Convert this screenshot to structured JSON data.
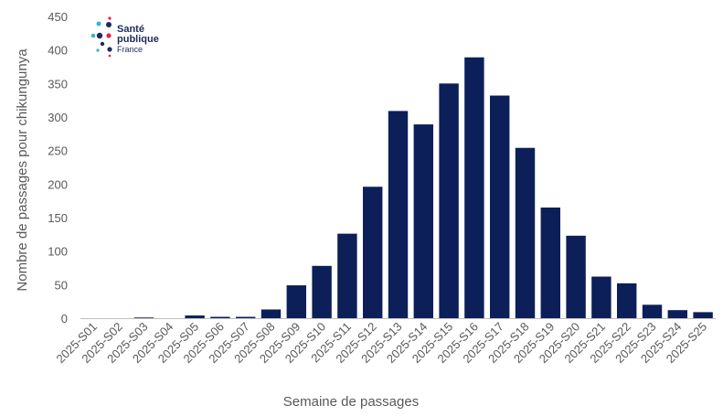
{
  "logo": {
    "line1": "Santé",
    "line2": "publique",
    "line3": "France",
    "colors": {
      "navy": "#1d2a5b",
      "cyan": "#2eb8d6",
      "red": "#e4224a"
    }
  },
  "chart_data": {
    "type": "bar",
    "title": "",
    "xlabel": "Semaine de passages",
    "ylabel": "Nombre de passages pour chikungunya",
    "ylim": [
      0,
      450
    ],
    "yticks": [
      0,
      50,
      100,
      150,
      200,
      250,
      300,
      350,
      400,
      450
    ],
    "grid": false,
    "legend": "none",
    "bar_color": "#0c1f59",
    "categories": [
      "2025-S01",
      "2025-S02",
      "2025-S03",
      "2025-S04",
      "2025-S05",
      "2025-S06",
      "2025-S07",
      "2025-S08",
      "2025-S09",
      "2025-S10",
      "2025-S11",
      "2025-S12",
      "2025-S13",
      "2025-S14",
      "2025-S15",
      "2025-S16",
      "2025-S17",
      "2025-S18",
      "2025-S19",
      "2025-S20",
      "2025-S21",
      "2025-S22",
      "2025-S23",
      "2025-S24",
      "2025-S25"
    ],
    "values": [
      0,
      0,
      1,
      0,
      4,
      2,
      2,
      13,
      49,
      78,
      126,
      196,
      309,
      289,
      350,
      389,
      332,
      254,
      165,
      123,
      62,
      52,
      20,
      12,
      9
    ]
  }
}
